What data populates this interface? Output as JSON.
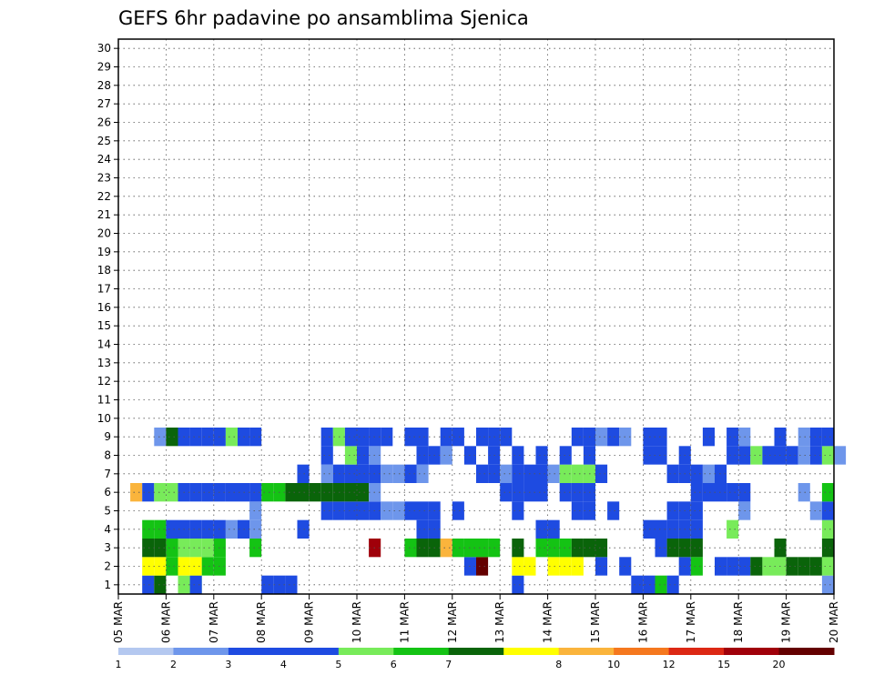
{
  "chart_data": {
    "type": "heatmap",
    "title": "GEFS 6hr padavine po ansamblima Sjenica",
    "xlabel": "",
    "ylabel": "",
    "x_ticks": [
      "05 MAR",
      "06 MAR",
      "07 MAR",
      "08 MAR",
      "09 MAR",
      "10 MAR",
      "11 MAR",
      "12 MAR",
      "13 MAR",
      "14 MAR",
      "15 MAR",
      "16 MAR",
      "17 MAR",
      "18 MAR",
      "19 MAR",
      "20 MAR"
    ],
    "y_ticks": [
      "1",
      "2",
      "3",
      "4",
      "5",
      "6",
      "7",
      "8",
      "9",
      "10",
      "11",
      "12",
      "13",
      "14",
      "15",
      "16",
      "17",
      "18",
      "19",
      "20",
      "21",
      "22",
      "23",
      "24",
      "25",
      "26",
      "27",
      "28",
      "29",
      "30"
    ],
    "xlim": [
      0,
      60
    ],
    "ylim": [
      0,
      30
    ],
    "time_steps_per_day": 4,
    "grid": true,
    "colorbar": {
      "placement": "bottom",
      "labels": [
        "1",
        "2",
        "3",
        "4",
        "5",
        "6",
        "7",
        "8",
        "10",
        "12",
        "15",
        "20"
      ],
      "colors": [
        "#b4c8f0",
        "#6e96eb",
        "#1e4be1",
        "#1e4be1",
        "#78eb5a",
        "#14c314",
        "#0a640a",
        "#ffff00",
        "#fab43c",
        "#f5781e",
        "#dc2814",
        "#a0000a",
        "#640000"
      ]
    },
    "cells": [
      [
        2,
        0,
        3
      ],
      [
        3,
        0,
        6
      ],
      [
        5,
        0,
        4
      ],
      [
        6,
        0,
        4
      ],
      [
        6,
        0,
        3
      ],
      [
        12,
        0,
        3
      ],
      [
        13,
        0,
        3
      ],
      [
        14,
        0,
        2
      ],
      [
        33,
        0,
        2
      ],
      [
        43,
        0,
        2
      ],
      [
        44,
        0,
        2
      ],
      [
        45,
        0,
        5
      ],
      [
        46,
        0,
        2
      ],
      [
        59,
        0,
        1
      ],
      [
        2,
        1,
        7
      ],
      [
        3,
        1,
        7
      ],
      [
        4,
        1,
        5
      ],
      [
        5,
        1,
        7
      ],
      [
        6,
        1,
        7
      ],
      [
        7,
        1,
        5
      ],
      [
        8,
        1,
        5
      ],
      [
        29,
        1,
        2
      ],
      [
        30,
        1,
        12
      ],
      [
        33,
        1,
        7
      ],
      [
        34,
        1,
        7
      ],
      [
        36,
        1,
        7
      ],
      [
        37,
        1,
        7
      ],
      [
        38,
        1,
        7
      ],
      [
        40,
        1,
        3
      ],
      [
        42,
        1,
        2
      ],
      [
        47,
        1,
        3
      ],
      [
        48,
        1,
        5
      ],
      [
        50,
        1,
        2
      ],
      [
        51,
        1,
        2
      ],
      [
        52,
        1,
        2
      ],
      [
        53,
        1,
        6
      ],
      [
        54,
        1,
        4
      ],
      [
        55,
        1,
        4
      ],
      [
        56,
        1,
        6
      ],
      [
        57,
        1,
        6
      ],
      [
        58,
        1,
        6
      ],
      [
        59,
        1,
        4
      ],
      [
        2,
        2,
        6
      ],
      [
        3,
        2,
        6
      ],
      [
        4,
        2,
        5
      ],
      [
        5,
        2,
        4
      ],
      [
        6,
        2,
        4
      ],
      [
        7,
        2,
        4
      ],
      [
        8,
        2,
        5
      ],
      [
        11,
        2,
        5
      ],
      [
        21,
        2,
        11
      ],
      [
        24,
        2,
        5
      ],
      [
        25,
        2,
        6
      ],
      [
        26,
        2,
        6
      ],
      [
        27,
        2,
        8
      ],
      [
        28,
        2,
        5
      ],
      [
        29,
        2,
        5
      ],
      [
        30,
        2,
        5
      ],
      [
        31,
        2,
        5
      ],
      [
        33,
        2,
        6
      ],
      [
        35,
        2,
        5
      ],
      [
        36,
        2,
        5
      ],
      [
        37,
        2,
        5
      ],
      [
        38,
        2,
        6
      ],
      [
        39,
        2,
        6
      ],
      [
        40,
        2,
        6
      ],
      [
        45,
        2,
        2
      ],
      [
        46,
        2,
        6
      ],
      [
        47,
        2,
        6
      ],
      [
        48,
        2,
        6
      ],
      [
        55,
        2,
        6
      ],
      [
        59,
        2,
        6
      ],
      [
        2,
        3,
        5
      ],
      [
        3,
        3,
        5
      ],
      [
        4,
        3,
        3
      ],
      [
        5,
        3,
        3
      ],
      [
        6,
        3,
        2
      ],
      [
        7,
        3,
        2
      ],
      [
        8,
        3,
        3
      ],
      [
        9,
        3,
        1
      ],
      [
        10,
        3,
        3
      ],
      [
        11,
        3,
        1
      ],
      [
        15,
        3,
        3
      ],
      [
        25,
        3,
        3
      ],
      [
        26,
        3,
        2
      ],
      [
        35,
        3,
        3
      ],
      [
        36,
        3,
        2
      ],
      [
        44,
        3,
        3
      ],
      [
        45,
        3,
        2
      ],
      [
        46,
        3,
        2
      ],
      [
        47,
        3,
        2
      ],
      [
        48,
        3,
        2
      ],
      [
        51,
        3,
        4
      ],
      [
        59,
        3,
        4
      ],
      [
        61,
        3,
        1
      ],
      [
        11,
        4,
        1
      ],
      [
        17,
        4,
        3
      ],
      [
        18,
        4,
        3
      ],
      [
        19,
        4,
        3
      ],
      [
        20,
        4,
        2
      ],
      [
        21,
        4,
        2
      ],
      [
        22,
        4,
        1
      ],
      [
        23,
        4,
        1
      ],
      [
        24,
        4,
        2
      ],
      [
        25,
        4,
        3
      ],
      [
        26,
        4,
        2
      ],
      [
        28,
        4,
        2
      ],
      [
        33,
        4,
        2
      ],
      [
        38,
        4,
        2
      ],
      [
        39,
        4,
        2
      ],
      [
        41,
        4,
        3
      ],
      [
        46,
        4,
        2
      ],
      [
        47,
        4,
        2
      ],
      [
        48,
        4,
        2
      ],
      [
        52,
        4,
        1
      ],
      [
        58,
        4,
        1
      ],
      [
        59,
        4,
        2
      ],
      [
        1,
        5,
        8
      ],
      [
        2,
        5,
        3
      ],
      [
        3,
        5,
        4
      ],
      [
        4,
        5,
        4
      ],
      [
        5,
        5,
        3
      ],
      [
        6,
        5,
        3
      ],
      [
        7,
        5,
        2
      ],
      [
        8,
        5,
        2
      ],
      [
        9,
        5,
        2
      ],
      [
        10,
        5,
        3
      ],
      [
        11,
        5,
        3
      ],
      [
        12,
        5,
        5
      ],
      [
        13,
        5,
        5
      ],
      [
        14,
        5,
        6
      ],
      [
        15,
        5,
        6
      ],
      [
        16,
        5,
        6
      ],
      [
        17,
        5,
        6
      ],
      [
        18,
        5,
        6
      ],
      [
        19,
        5,
        6
      ],
      [
        20,
        5,
        6
      ],
      [
        21,
        5,
        1
      ],
      [
        32,
        5,
        3
      ],
      [
        33,
        5,
        3
      ],
      [
        34,
        5,
        2
      ],
      [
        35,
        5,
        2
      ],
      [
        37,
        5,
        3
      ],
      [
        38,
        5,
        3
      ],
      [
        39,
        5,
        3
      ],
      [
        48,
        5,
        2
      ],
      [
        49,
        5,
        2
      ],
      [
        50,
        5,
        2
      ],
      [
        51,
        5,
        3
      ],
      [
        52,
        5,
        3
      ],
      [
        57,
        5,
        1
      ],
      [
        59,
        5,
        5
      ],
      [
        15,
        6,
        2
      ],
      [
        17,
        6,
        1
      ],
      [
        18,
        6,
        2
      ],
      [
        19,
        6,
        3
      ],
      [
        20,
        6,
        3
      ],
      [
        21,
        6,
        2
      ],
      [
        22,
        6,
        1
      ],
      [
        23,
        6,
        1
      ],
      [
        24,
        6,
        2
      ],
      [
        25,
        6,
        1
      ],
      [
        30,
        6,
        2
      ],
      [
        31,
        6,
        2
      ],
      [
        32,
        6,
        1
      ],
      [
        33,
        6,
        3
      ],
      [
        34,
        6,
        2
      ],
      [
        35,
        6,
        2
      ],
      [
        36,
        6,
        1
      ],
      [
        37,
        6,
        4
      ],
      [
        38,
        6,
        4
      ],
      [
        39,
        6,
        4
      ],
      [
        40,
        6,
        3
      ],
      [
        46,
        6,
        2
      ],
      [
        47,
        6,
        2
      ],
      [
        48,
        6,
        2
      ],
      [
        49,
        6,
        1
      ],
      [
        50,
        6,
        2
      ],
      [
        17,
        7,
        2
      ],
      [
        19,
        7,
        4
      ],
      [
        20,
        7,
        2
      ],
      [
        21,
        7,
        1
      ],
      [
        25,
        7,
        3
      ],
      [
        26,
        7,
        2
      ],
      [
        27,
        7,
        1
      ],
      [
        29,
        7,
        2
      ],
      [
        31,
        7,
        3
      ],
      [
        33,
        7,
        3
      ],
      [
        35,
        7,
        3
      ],
      [
        37,
        7,
        2
      ],
      [
        39,
        7,
        2
      ],
      [
        44,
        7,
        2
      ],
      [
        45,
        7,
        2
      ],
      [
        47,
        7,
        2
      ],
      [
        51,
        7,
        2
      ],
      [
        52,
        7,
        2
      ],
      [
        53,
        7,
        4
      ],
      [
        54,
        7,
        3
      ],
      [
        55,
        7,
        2
      ],
      [
        56,
        7,
        2
      ],
      [
        57,
        7,
        1
      ],
      [
        58,
        7,
        2
      ],
      [
        59,
        7,
        4
      ],
      [
        60,
        7,
        1
      ],
      [
        3,
        8,
        1
      ],
      [
        4,
        8,
        6
      ],
      [
        5,
        8,
        3
      ],
      [
        6,
        8,
        2
      ],
      [
        7,
        8,
        2
      ],
      [
        8,
        8,
        2
      ],
      [
        9,
        8,
        4
      ],
      [
        10,
        8,
        2
      ],
      [
        11,
        8,
        2
      ],
      [
        17,
        8,
        3
      ],
      [
        18,
        8,
        4
      ],
      [
        19,
        8,
        3
      ],
      [
        20,
        8,
        2
      ],
      [
        21,
        8,
        2
      ],
      [
        22,
        8,
        3
      ],
      [
        24,
        8,
        2
      ],
      [
        25,
        8,
        2
      ],
      [
        27,
        8,
        3
      ],
      [
        28,
        8,
        2
      ],
      [
        30,
        8,
        2
      ],
      [
        31,
        8,
        3
      ],
      [
        32,
        8,
        3
      ],
      [
        38,
        8,
        3
      ],
      [
        39,
        8,
        2
      ],
      [
        40,
        8,
        1
      ],
      [
        41,
        8,
        2
      ],
      [
        42,
        8,
        1
      ],
      [
        44,
        8,
        2
      ],
      [
        45,
        8,
        2
      ],
      [
        49,
        8,
        2
      ],
      [
        51,
        8,
        2
      ],
      [
        52,
        8,
        1
      ],
      [
        55,
        8,
        2
      ],
      [
        57,
        8,
        1
      ],
      [
        58,
        8,
        2
      ],
      [
        59,
        8,
        3
      ]
    ]
  }
}
